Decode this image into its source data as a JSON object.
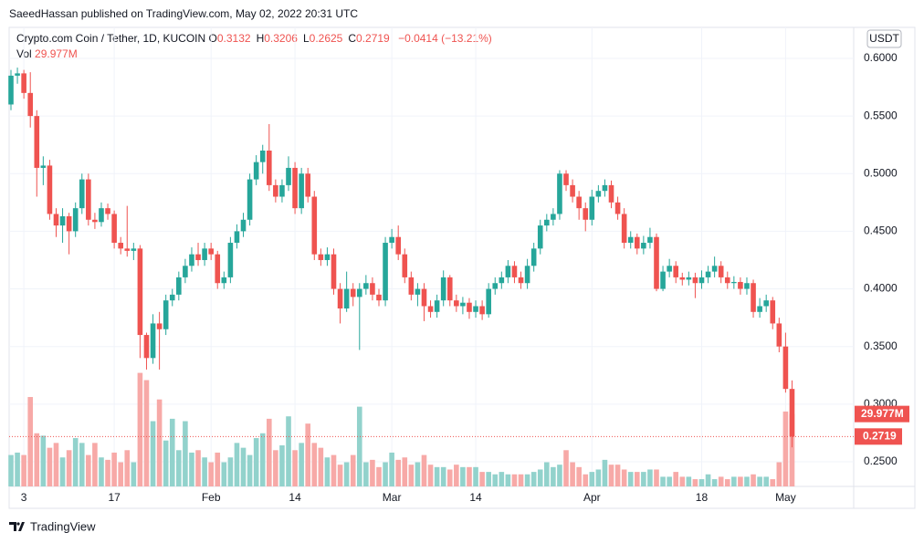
{
  "header": {
    "published": "SaeedHassan published on TradingView.com, May 02, 2022 20:31 UTC"
  },
  "footer": {
    "brand": "TradingView"
  },
  "chart_data": {
    "type": "candlestick",
    "symbol": "Crypto.com Coin / Tether, 1D, KUCOIN",
    "ohlc_legend": [
      {
        "label": "O",
        "value": "0.3132"
      },
      {
        "label": "H",
        "value": "0.3206"
      },
      {
        "label": "L",
        "value": "0.2625"
      },
      {
        "label": "C",
        "value": "0.2719"
      }
    ],
    "change": "−0.0414 (−13.21%)",
    "volume_legend": {
      "label": "Vol",
      "value": "29.977M"
    },
    "currency": "USDT",
    "up_color": "#26a69a",
    "down_color": "#ef5350",
    "volume_up_color": "#92d2cc",
    "volume_down_color": "#f7a9a7",
    "grid": true,
    "x": [
      "2022-01-01",
      "2022-01-02",
      "2022-01-03",
      "2022-01-04",
      "2022-01-05",
      "2022-01-06",
      "2022-01-07",
      "2022-01-08",
      "2022-01-09",
      "2022-01-10",
      "2022-01-11",
      "2022-01-12",
      "2022-01-13",
      "2022-01-14",
      "2022-01-15",
      "2022-01-16",
      "2022-01-17",
      "2022-01-18",
      "2022-01-19",
      "2022-01-20",
      "2022-01-21",
      "2022-01-22",
      "2022-01-23",
      "2022-01-24",
      "2022-01-25",
      "2022-01-26",
      "2022-01-27",
      "2022-01-28",
      "2022-01-29",
      "2022-01-30",
      "2022-01-31",
      "2022-02-01",
      "2022-02-02",
      "2022-02-03",
      "2022-02-04",
      "2022-02-05",
      "2022-02-06",
      "2022-02-07",
      "2022-02-08",
      "2022-02-09",
      "2022-02-10",
      "2022-02-11",
      "2022-02-12",
      "2022-02-13",
      "2022-02-14",
      "2022-02-15",
      "2022-02-16",
      "2022-02-17",
      "2022-02-18",
      "2022-02-19",
      "2022-02-20",
      "2022-02-21",
      "2022-02-22",
      "2022-02-23",
      "2022-02-24",
      "2022-02-25",
      "2022-02-26",
      "2022-02-27",
      "2022-02-28",
      "2022-03-01",
      "2022-03-02",
      "2022-03-03",
      "2022-03-04",
      "2022-03-05",
      "2022-03-06",
      "2022-03-07",
      "2022-03-08",
      "2022-03-09",
      "2022-03-10",
      "2022-03-11",
      "2022-03-12",
      "2022-03-13",
      "2022-03-14",
      "2022-03-15",
      "2022-03-16",
      "2022-03-17",
      "2022-03-18",
      "2022-03-19",
      "2022-03-20",
      "2022-03-21",
      "2022-03-22",
      "2022-03-23",
      "2022-03-24",
      "2022-03-25",
      "2022-03-26",
      "2022-03-27",
      "2022-03-28",
      "2022-03-29",
      "2022-03-30",
      "2022-03-31",
      "2022-04-01",
      "2022-04-02",
      "2022-04-03",
      "2022-04-04",
      "2022-04-05",
      "2022-04-06",
      "2022-04-07",
      "2022-04-08",
      "2022-04-09",
      "2022-04-10",
      "2022-04-11",
      "2022-04-12",
      "2022-04-13",
      "2022-04-14",
      "2022-04-15",
      "2022-04-16",
      "2022-04-17",
      "2022-04-18",
      "2022-04-19",
      "2022-04-20",
      "2022-04-21",
      "2022-04-22",
      "2022-04-23",
      "2022-04-24",
      "2022-04-25",
      "2022-04-26",
      "2022-04-27",
      "2022-04-28",
      "2022-04-29",
      "2022-04-30",
      "2022-05-01",
      "2022-05-02"
    ],
    "open": [
      0.56,
      0.585,
      0.587,
      0.57,
      0.55,
      0.505,
      0.507,
      0.465,
      0.455,
      0.463,
      0.45,
      0.47,
      0.495,
      0.46,
      0.458,
      0.47,
      0.465,
      0.44,
      0.435,
      0.433,
      0.435,
      0.36,
      0.34,
      0.37,
      0.365,
      0.39,
      0.395,
      0.41,
      0.42,
      0.43,
      0.425,
      0.435,
      0.43,
      0.405,
      0.41,
      0.44,
      0.45,
      0.46,
      0.495,
      0.51,
      0.52,
      0.49,
      0.48,
      0.49,
      0.505,
      0.47,
      0.5,
      0.48,
      0.43,
      0.425,
      0.43,
      0.4,
      0.383,
      0.4,
      0.393,
      0.4,
      0.405,
      0.395,
      0.39,
      0.44,
      0.445,
      0.43,
      0.41,
      0.395,
      0.4,
      0.385,
      0.38,
      0.39,
      0.41,
      0.39,
      0.385,
      0.388,
      0.38,
      0.385,
      0.378,
      0.4,
      0.405,
      0.41,
      0.42,
      0.41,
      0.405,
      0.42,
      0.435,
      0.455,
      0.46,
      0.465,
      0.5,
      0.49,
      0.48,
      0.47,
      0.46,
      0.48,
      0.485,
      0.49,
      0.475,
      0.465,
      0.44,
      0.445,
      0.435,
      0.44,
      0.445,
      0.4,
      0.415,
      0.42,
      0.41,
      0.408,
      0.41,
      0.405,
      0.41,
      0.415,
      0.42,
      0.41,
      0.405,
      0.406,
      0.4,
      0.405,
      0.38,
      0.385,
      0.39,
      0.37,
      0.35,
      0.3132
    ],
    "high": [
      0.59,
      0.592,
      0.59,
      0.588,
      0.555,
      0.515,
      0.512,
      0.47,
      0.47,
      0.466,
      0.475,
      0.5,
      0.5,
      0.466,
      0.475,
      0.474,
      0.468,
      0.445,
      0.472,
      0.44,
      0.438,
      0.362,
      0.378,
      0.38,
      0.395,
      0.4,
      0.415,
      0.426,
      0.436,
      0.44,
      0.44,
      0.44,
      0.433,
      0.415,
      0.445,
      0.456,
      0.466,
      0.5,
      0.516,
      0.525,
      0.543,
      0.495,
      0.495,
      0.515,
      0.51,
      0.505,
      0.505,
      0.485,
      0.435,
      0.436,
      0.435,
      0.405,
      0.415,
      0.405,
      0.405,
      0.412,
      0.41,
      0.4,
      0.445,
      0.452,
      0.455,
      0.435,
      0.415,
      0.405,
      0.405,
      0.39,
      0.395,
      0.416,
      0.412,
      0.395,
      0.393,
      0.392,
      0.39,
      0.39,
      0.405,
      0.41,
      0.415,
      0.425,
      0.424,
      0.415,
      0.426,
      0.44,
      0.46,
      0.465,
      0.47,
      0.503,
      0.503,
      0.495,
      0.485,
      0.475,
      0.486,
      0.49,
      0.495,
      0.494,
      0.48,
      0.47,
      0.45,
      0.448,
      0.446,
      0.453,
      0.448,
      0.42,
      0.426,
      0.424,
      0.414,
      0.415,
      0.414,
      0.416,
      0.42,
      0.428,
      0.424,
      0.415,
      0.411,
      0.41,
      0.41,
      0.408,
      0.392,
      0.395,
      0.393,
      0.375,
      0.362,
      0.3206
    ],
    "low": [
      0.555,
      0.578,
      0.565,
      0.54,
      0.48,
      0.49,
      0.46,
      0.445,
      0.44,
      0.43,
      0.445,
      0.465,
      0.455,
      0.452,
      0.454,
      0.46,
      0.435,
      0.43,
      0.428,
      0.425,
      0.34,
      0.33,
      0.335,
      0.33,
      0.36,
      0.385,
      0.39,
      0.405,
      0.415,
      0.42,
      0.42,
      0.425,
      0.4,
      0.4,
      0.405,
      0.435,
      0.445,
      0.455,
      0.49,
      0.5,
      0.485,
      0.475,
      0.475,
      0.485,
      0.465,
      0.465,
      0.475,
      0.425,
      0.42,
      0.42,
      0.395,
      0.37,
      0.38,
      0.385,
      0.347,
      0.395,
      0.39,
      0.385,
      0.385,
      0.435,
      0.425,
      0.405,
      0.39,
      0.385,
      0.372,
      0.375,
      0.375,
      0.385,
      0.385,
      0.38,
      0.378,
      0.374,
      0.375,
      0.373,
      0.375,
      0.395,
      0.4,
      0.405,
      0.405,
      0.4,
      0.4,
      0.415,
      0.43,
      0.45,
      0.455,
      0.46,
      0.485,
      0.475,
      0.46,
      0.45,
      0.455,
      0.475,
      0.48,
      0.47,
      0.46,
      0.435,
      0.435,
      0.43,
      0.43,
      0.435,
      0.398,
      0.398,
      0.41,
      0.405,
      0.403,
      0.403,
      0.392,
      0.4,
      0.405,
      0.41,
      0.405,
      0.4,
      0.4,
      0.395,
      0.395,
      0.375,
      0.375,
      0.38,
      0.365,
      0.345,
      0.31,
      0.2625
    ],
    "close": [
      0.585,
      0.587,
      0.57,
      0.55,
      0.505,
      0.507,
      0.465,
      0.455,
      0.463,
      0.45,
      0.47,
      0.495,
      0.46,
      0.458,
      0.47,
      0.465,
      0.44,
      0.435,
      0.433,
      0.435,
      0.36,
      0.34,
      0.37,
      0.365,
      0.39,
      0.395,
      0.41,
      0.42,
      0.43,
      0.425,
      0.435,
      0.43,
      0.405,
      0.41,
      0.44,
      0.45,
      0.46,
      0.495,
      0.51,
      0.52,
      0.49,
      0.48,
      0.49,
      0.505,
      0.47,
      0.5,
      0.48,
      0.43,
      0.425,
      0.43,
      0.4,
      0.383,
      0.4,
      0.393,
      0.4,
      0.405,
      0.395,
      0.39,
      0.44,
      0.445,
      0.43,
      0.41,
      0.395,
      0.4,
      0.385,
      0.38,
      0.39,
      0.41,
      0.39,
      0.385,
      0.388,
      0.38,
      0.385,
      0.378,
      0.4,
      0.405,
      0.41,
      0.42,
      0.41,
      0.405,
      0.42,
      0.435,
      0.455,
      0.46,
      0.465,
      0.5,
      0.49,
      0.48,
      0.47,
      0.46,
      0.48,
      0.485,
      0.49,
      0.475,
      0.465,
      0.44,
      0.445,
      0.435,
      0.44,
      0.445,
      0.4,
      0.415,
      0.42,
      0.41,
      0.408,
      0.41,
      0.405,
      0.41,
      0.415,
      0.42,
      0.41,
      0.405,
      0.406,
      0.4,
      0.405,
      0.38,
      0.385,
      0.39,
      0.37,
      0.35,
      0.3132,
      0.2719
    ],
    "volume": [
      13,
      14,
      13,
      37,
      22,
      21,
      16,
      18,
      12,
      15,
      20,
      18,
      13,
      18,
      12,
      11,
      14,
      10,
      15,
      10,
      47,
      44,
      27,
      36,
      19,
      28,
      15,
      27,
      14,
      15,
      12,
      10,
      14,
      10,
      12,
      18,
      16,
      13,
      20,
      22,
      28,
      15,
      17,
      29,
      15,
      18,
      26,
      18,
      16,
      12,
      13,
      9,
      10,
      13,
      33,
      10,
      11,
      8,
      10,
      14,
      11,
      12,
      9,
      10,
      13,
      9,
      8,
      8,
      7,
      9,
      8,
      8,
      8,
      6,
      6,
      5,
      6,
      5,
      5,
      5,
      5,
      6,
      7,
      10,
      8,
      9,
      15,
      10,
      8,
      5,
      6,
      7,
      11,
      9,
      9,
      7,
      6,
      6,
      6,
      7,
      7,
      4,
      4,
      6,
      4,
      4,
      3,
      3,
      5,
      3,
      4,
      3,
      4,
      4,
      4,
      5,
      4,
      4,
      3,
      10,
      31,
      29.977
    ],
    "ylim": [
      0.2286,
      0.6269
    ],
    "volume_ylim": [
      0,
      190
    ],
    "yticks": [
      {
        "value": 0.25,
        "label": "0.2500"
      },
      {
        "value": 0.3,
        "label": "0.3000"
      },
      {
        "value": 0.35,
        "label": "0.3500"
      },
      {
        "value": 0.4,
        "label": "0.4000"
      },
      {
        "value": 0.45,
        "label": "0.4500"
      },
      {
        "value": 0.5,
        "label": "0.5000"
      },
      {
        "value": 0.55,
        "label": "0.5500"
      },
      {
        "value": 0.6,
        "label": "0.6000"
      }
    ],
    "xticks": [
      {
        "value": "2022-01-03",
        "label": "3"
      },
      {
        "value": "2022-01-17",
        "label": "17"
      },
      {
        "value": "2022-02-01",
        "label": "Feb"
      },
      {
        "value": "2022-02-14",
        "label": "14"
      },
      {
        "value": "2022-03-01",
        "label": "Mar"
      },
      {
        "value": "2022-03-14",
        "label": "14"
      },
      {
        "value": "2022-04-01",
        "label": "Apr"
      },
      {
        "value": "2022-04-18",
        "label": "18"
      },
      {
        "value": "2022-05-01",
        "label": "May"
      }
    ]
  }
}
